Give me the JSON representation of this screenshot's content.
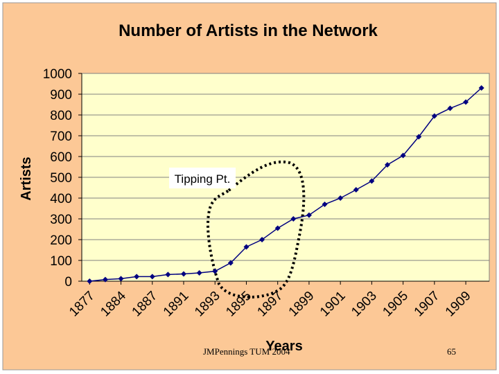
{
  "footer": {
    "credit": "JMPennings TUM 2004",
    "page_number": "65"
  },
  "annotation": {
    "text": "Tipping Pt."
  },
  "colors": {
    "outer_background": "#fcc896",
    "plot_background": "#ffffcc",
    "series": "#000080"
  },
  "chart_data": {
    "type": "line",
    "title": "Number of Artists in the Network",
    "xlabel": "Years",
    "ylabel": "Artists",
    "ylim": [
      0,
      1000
    ],
    "yticks": [
      0,
      100,
      200,
      300,
      400,
      500,
      600,
      700,
      800,
      900,
      1000
    ],
    "x_tick_labels": [
      "1877",
      "1884",
      "1887",
      "1891",
      "1893",
      "1895",
      "1897",
      "1899",
      "1901",
      "1903",
      "1905",
      "1907",
      "1909"
    ],
    "grid": true,
    "legend": "none",
    "series": [
      {
        "values": [
          0,
          8,
          12,
          22,
          22,
          32,
          35,
          40,
          48,
          88,
          165,
          200,
          255,
          300,
          318,
          370,
          400,
          440,
          482,
          560,
          605,
          695,
          795,
          832,
          862,
          930
        ]
      }
    ]
  }
}
